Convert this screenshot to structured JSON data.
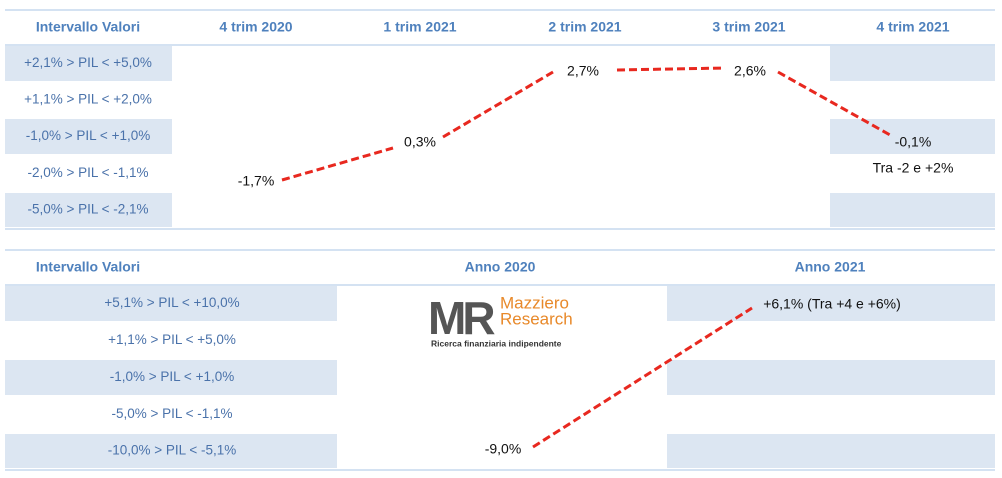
{
  "top_table": {
    "headers": [
      "Intervallo Valori",
      "4 trim 2020",
      "1 trim 2021",
      "2 trim 2021",
      "3 trim 2021",
      "4 trim 2021"
    ],
    "rows": [
      "+2,1% > PIL < +5,0%",
      "+1,1% > PIL < +2,0%",
      "-1,0% > PIL < +1,0%",
      "-2,0% > PIL < -1,1%",
      "-5,0% > PIL < -2,1%"
    ],
    "points": [
      "-1,7%",
      "0,3%",
      "2,7%",
      "2,6%",
      "-0,1%"
    ],
    "note": "Tra -2 e +2%"
  },
  "bottom_table": {
    "headers": [
      "Intervallo Valori",
      "Anno 2020",
      "Anno 2021"
    ],
    "rows": [
      "+5,1% > PIL < +10,0%",
      "+1,1% > PIL < +5,0%",
      "-1,0% > PIL < +1,0%",
      "-5,0% > PIL < -1,1%",
      "-10,0% > PIL < -5,1%"
    ],
    "points": [
      "-9,0%",
      "+6,1% (Tra +4 e +6%)"
    ]
  },
  "logo": {
    "mark": "MR",
    "name_1": "Mazziero",
    "name_2": "Research",
    "tagline": "Ricerca finanziaria indipendente"
  }
}
